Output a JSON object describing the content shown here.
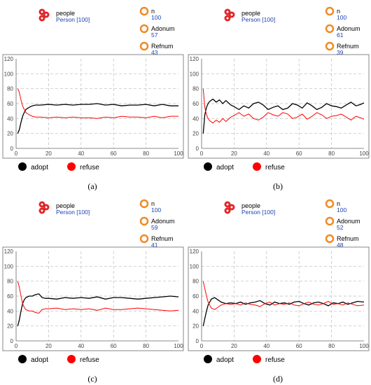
{
  "panels": [
    {
      "caption": "(a)",
      "agent": {
        "label": "people",
        "value": "Person [100]"
      },
      "params": [
        {
          "label": "n",
          "value": "100"
        },
        {
          "label": "Adonum",
          "value": "57"
        },
        {
          "label": "Refnum",
          "value": "43"
        }
      ]
    },
    {
      "caption": "(b)",
      "agent": {
        "label": "people",
        "value": "Person [100]"
      },
      "params": [
        {
          "label": "n",
          "value": "100"
        },
        {
          "label": "Adonum",
          "value": "61"
        },
        {
          "label": "Refnum",
          "value": "39"
        }
      ]
    },
    {
      "caption": "(c)",
      "agent": {
        "label": "people",
        "value": "Person [100]"
      },
      "params": [
        {
          "label": "n",
          "value": "100"
        },
        {
          "label": "Adonum",
          "value": "59"
        },
        {
          "label": "Refnum",
          "value": "41"
        }
      ]
    },
    {
      "caption": "(d)",
      "agent": {
        "label": "people",
        "value": "Person [100]"
      },
      "params": [
        {
          "label": "n",
          "value": "100"
        },
        {
          "label": "Adonum",
          "value": "52"
        },
        {
          "label": "Refnum",
          "value": "48"
        }
      ]
    }
  ],
  "chart_data": [
    {
      "type": "line",
      "xlim": [
        0,
        100
      ],
      "ylim": [
        0,
        120
      ],
      "xticks": [
        "0",
        "20",
        "40",
        "60",
        "80",
        "100"
      ],
      "yticks": [
        "0",
        "20",
        "40",
        "60",
        "80",
        "100",
        "120"
      ],
      "grid": true,
      "legend_position": "bottom",
      "series": [
        {
          "name": "adopt",
          "color": "#000000",
          "x": [
            1,
            2,
            3,
            4,
            5,
            6,
            8,
            10,
            12,
            15,
            20,
            25,
            30,
            35,
            40,
            45,
            50,
            55,
            60,
            65,
            70,
            75,
            80,
            85,
            90,
            95,
            100
          ],
          "values": [
            20,
            25,
            35,
            43,
            48,
            52,
            55,
            57,
            58,
            58,
            59,
            58,
            59,
            58,
            59,
            59,
            60,
            58,
            59,
            57,
            58,
            58,
            59,
            57,
            59,
            57,
            57
          ]
        },
        {
          "name": "refuse",
          "color": "#ff0000",
          "x": [
            1,
            2,
            3,
            4,
            5,
            6,
            8,
            10,
            12,
            15,
            20,
            25,
            30,
            35,
            40,
            45,
            50,
            55,
            60,
            65,
            70,
            75,
            80,
            85,
            90,
            95,
            100
          ],
          "values": [
            80,
            75,
            65,
            57,
            52,
            48,
            45,
            43,
            42,
            42,
            41,
            42,
            41,
            42,
            41,
            41,
            40,
            42,
            41,
            43,
            42,
            42,
            41,
            43,
            41,
            43,
            43
          ]
        }
      ]
    },
    {
      "type": "line",
      "xlim": [
        0,
        100
      ],
      "ylim": [
        0,
        120
      ],
      "xticks": [
        "0",
        "20",
        "40",
        "60",
        "80",
        "100"
      ],
      "yticks": [
        "0",
        "20",
        "40",
        "60",
        "80",
        "100",
        "120"
      ],
      "grid": true,
      "legend_position": "bottom",
      "series": [
        {
          "name": "adopt",
          "color": "#000000",
          "x": [
            1,
            2,
            3,
            4,
            5,
            7,
            9,
            11,
            13,
            15,
            18,
            20,
            23,
            26,
            29,
            32,
            35,
            38,
            41,
            44,
            47,
            50,
            53,
            56,
            59,
            62,
            65,
            68,
            71,
            74,
            77,
            80,
            83,
            86,
            89,
            92,
            95,
            98,
            100
          ],
          "values": [
            20,
            45,
            55,
            60,
            63,
            66,
            62,
            65,
            60,
            64,
            58,
            56,
            52,
            57,
            54,
            60,
            62,
            58,
            52,
            55,
            57,
            52,
            54,
            60,
            58,
            54,
            61,
            57,
            52,
            55,
            60,
            57,
            56,
            54,
            58,
            62,
            57,
            59,
            61
          ]
        },
        {
          "name": "refuse",
          "color": "#ff0000",
          "x": [
            1,
            2,
            3,
            4,
            5,
            7,
            9,
            11,
            13,
            15,
            18,
            20,
            23,
            26,
            29,
            32,
            35,
            38,
            41,
            44,
            47,
            50,
            53,
            56,
            59,
            62,
            65,
            68,
            71,
            74,
            77,
            80,
            83,
            86,
            89,
            92,
            95,
            98,
            100
          ],
          "values": [
            80,
            55,
            45,
            40,
            37,
            34,
            38,
            35,
            40,
            36,
            42,
            44,
            48,
            43,
            46,
            40,
            38,
            42,
            48,
            45,
            43,
            48,
            46,
            40,
            42,
            46,
            39,
            43,
            48,
            45,
            40,
            43,
            44,
            46,
            42,
            38,
            43,
            41,
            39
          ]
        }
      ]
    },
    {
      "type": "line",
      "xlim": [
        0,
        100
      ],
      "ylim": [
        0,
        120
      ],
      "xticks": [
        "0",
        "20",
        "40",
        "60",
        "80",
        "100"
      ],
      "yticks": [
        "0",
        "20",
        "40",
        "60",
        "80",
        "100",
        "120"
      ],
      "grid": true,
      "legend_position": "bottom",
      "series": [
        {
          "name": "adopt",
          "color": "#000000",
          "x": [
            1,
            2,
            3,
            4,
            5,
            6,
            8,
            10,
            12,
            14,
            16,
            18,
            20,
            25,
            30,
            35,
            40,
            45,
            50,
            55,
            60,
            65,
            70,
            75,
            80,
            85,
            90,
            95,
            100
          ],
          "values": [
            20,
            28,
            40,
            50,
            55,
            58,
            60,
            60,
            62,
            63,
            58,
            57,
            57,
            56,
            58,
            57,
            58,
            57,
            59,
            56,
            58,
            58,
            57,
            56,
            57,
            58,
            59,
            60,
            59
          ]
        },
        {
          "name": "refuse",
          "color": "#ff0000",
          "x": [
            1,
            2,
            3,
            4,
            5,
            6,
            8,
            10,
            12,
            14,
            16,
            18,
            20,
            25,
            30,
            35,
            40,
            45,
            50,
            55,
            60,
            65,
            70,
            75,
            80,
            85,
            90,
            95,
            100
          ],
          "values": [
            80,
            72,
            60,
            50,
            45,
            42,
            40,
            40,
            38,
            37,
            42,
            43,
            43,
            44,
            42,
            43,
            42,
            43,
            41,
            44,
            42,
            42,
            43,
            44,
            43,
            42,
            41,
            40,
            41
          ]
        }
      ]
    },
    {
      "type": "line",
      "xlim": [
        0,
        100
      ],
      "ylim": [
        0,
        120
      ],
      "xticks": [
        "0",
        "20",
        "40",
        "60",
        "80",
        "100"
      ],
      "yticks": [
        "0",
        "20",
        "40",
        "60",
        "80",
        "100",
        "120"
      ],
      "grid": true,
      "legend_position": "bottom",
      "series": [
        {
          "name": "adopt",
          "color": "#000000",
          "x": [
            1,
            2,
            3,
            4,
            5,
            6,
            8,
            10,
            12,
            15,
            18,
            21,
            24,
            27,
            30,
            33,
            36,
            39,
            42,
            45,
            48,
            51,
            54,
            57,
            60,
            63,
            66,
            69,
            72,
            75,
            78,
            81,
            84,
            87,
            90,
            93,
            96,
            100
          ],
          "values": [
            20,
            30,
            40,
            48,
            52,
            56,
            58,
            55,
            52,
            50,
            51,
            50,
            52,
            49,
            51,
            52,
            54,
            50,
            48,
            52,
            50,
            51,
            49,
            52,
            53,
            50,
            48,
            51,
            52,
            50,
            47,
            51,
            50,
            52,
            49,
            51,
            53,
            52
          ]
        },
        {
          "name": "refuse",
          "color": "#ff0000",
          "x": [
            1,
            2,
            3,
            4,
            5,
            6,
            8,
            10,
            12,
            15,
            18,
            21,
            24,
            27,
            30,
            33,
            36,
            39,
            42,
            45,
            48,
            51,
            54,
            57,
            60,
            63,
            66,
            69,
            72,
            75,
            78,
            81,
            84,
            87,
            90,
            93,
            96,
            100
          ],
          "values": [
            80,
            70,
            60,
            52,
            48,
            44,
            42,
            45,
            48,
            50,
            49,
            50,
            48,
            51,
            49,
            48,
            46,
            50,
            52,
            48,
            50,
            49,
            51,
            48,
            47,
            50,
            52,
            49,
            48,
            50,
            53,
            49,
            50,
            48,
            51,
            49,
            47,
            48
          ]
        }
      ]
    }
  ]
}
